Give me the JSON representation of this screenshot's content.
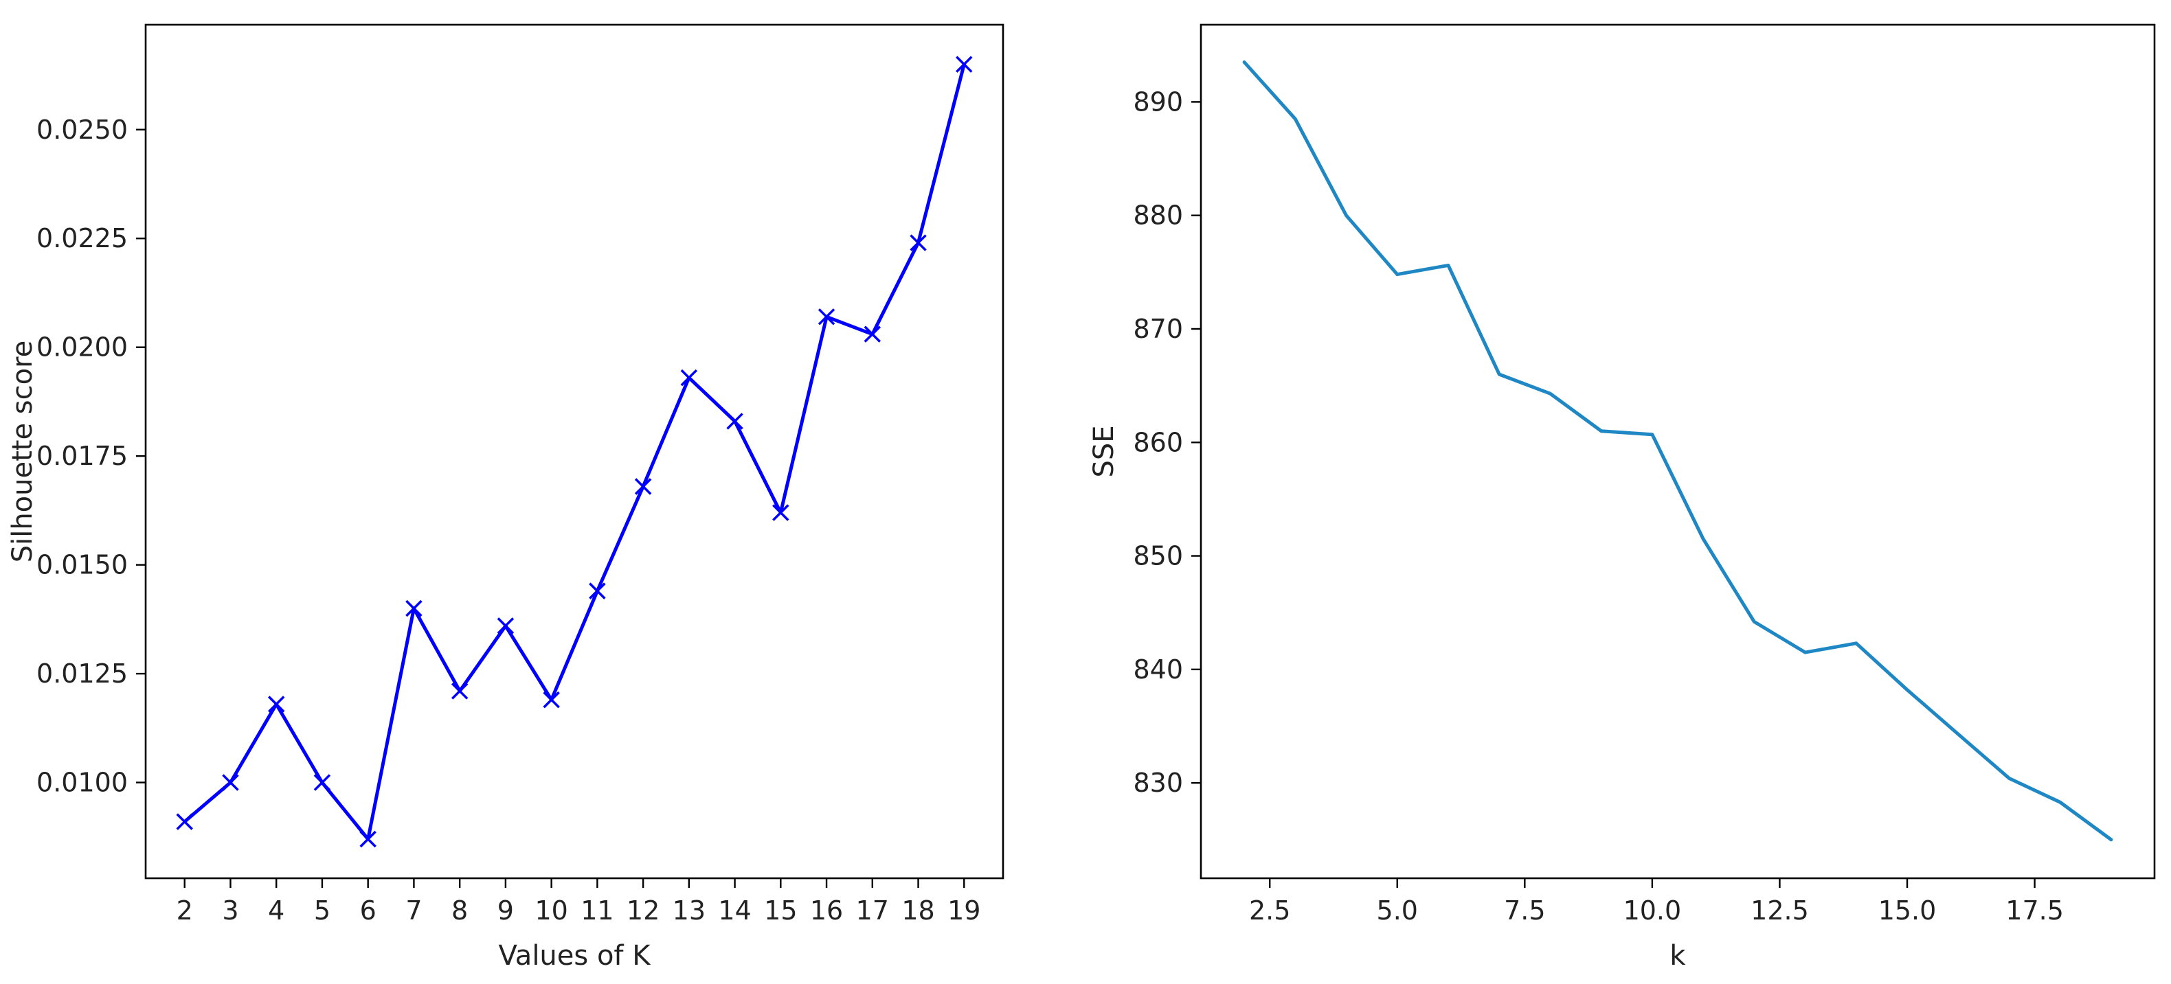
{
  "chart_data": [
    {
      "type": "line",
      "title": "",
      "xlabel": "Values of K",
      "ylabel": "Silhouette score",
      "x": [
        2,
        3,
        4,
        5,
        6,
        7,
        8,
        9,
        10,
        11,
        12,
        13,
        14,
        15,
        16,
        17,
        18,
        19
      ],
      "series": [
        {
          "values": [
            0.0091,
            0.01,
            0.0118,
            0.01,
            0.0087,
            0.014,
            0.0121,
            0.0136,
            0.0119,
            0.0144,
            0.0168,
            0.0193,
            0.0183,
            0.0162,
            0.0207,
            0.0203,
            0.0224,
            0.0265
          ],
          "color": "#0000ff",
          "marker": "x"
        }
      ],
      "xticks": [
        "2",
        "3",
        "4",
        "5",
        "6",
        "7",
        "8",
        "9",
        "10",
        "11",
        "12",
        "13",
        "14",
        "15",
        "16",
        "17",
        "18",
        "19"
      ],
      "yticks": [
        "0.0100",
        "0.0125",
        "0.0150",
        "0.0175",
        "0.0200",
        "0.0225",
        "0.0250"
      ],
      "xlim": [
        1.15,
        19.85
      ],
      "ylim": [
        0.0078,
        0.02741
      ],
      "grid": false
    },
    {
      "type": "line",
      "title": "",
      "xlabel": "k",
      "ylabel": "SSE",
      "x": [
        2,
        3,
        4,
        5,
        6,
        7,
        8,
        9,
        10,
        11,
        12,
        13,
        14,
        15,
        16,
        17,
        18,
        19
      ],
      "series": [
        {
          "values": [
            893.5,
            888.5,
            880.0,
            874.8,
            875.6,
            866.0,
            864.3,
            861.0,
            860.7,
            851.5,
            844.2,
            841.5,
            842.3,
            838.2,
            834.3,
            830.4,
            828.3,
            825.0
          ],
          "color": "#1f88c4",
          "marker": "none"
        }
      ],
      "xticks": [
        "2.5",
        "5.0",
        "7.5",
        "10.0",
        "12.5",
        "15.0",
        "17.5"
      ],
      "yticks": [
        "830",
        "840",
        "850",
        "860",
        "870",
        "880",
        "890"
      ],
      "xlim": [
        1.15,
        19.85
      ],
      "ylim": [
        821.6,
        896.8
      ],
      "grid": false
    }
  ]
}
